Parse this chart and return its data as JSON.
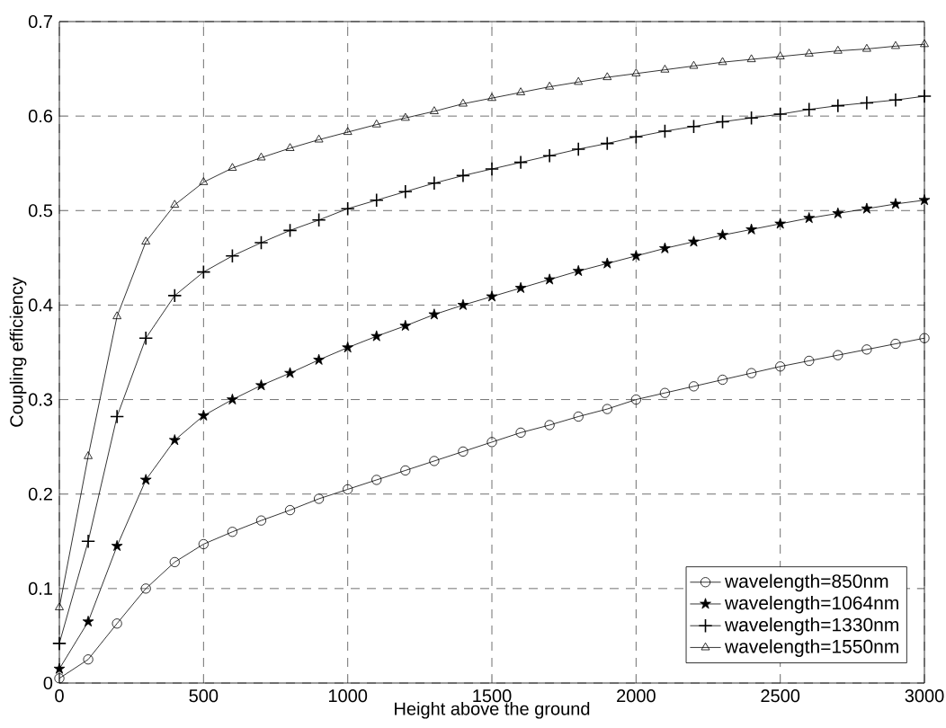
{
  "chart_data": {
    "type": "line",
    "xlabel": "Height above the ground",
    "ylabel": "Coupling efficiency",
    "x": [
      0,
      100,
      200,
      300,
      400,
      500,
      600,
      700,
      800,
      900,
      1000,
      1100,
      1200,
      1300,
      1400,
      1500,
      1600,
      1700,
      1800,
      1900,
      2000,
      2100,
      2200,
      2300,
      2400,
      2500,
      2600,
      2700,
      2800,
      2900,
      3000
    ],
    "series": [
      {
        "name": "wavelength=850nm",
        "color": "#000000",
        "marker": "circle",
        "values": [
          0.005,
          0.025,
          0.063,
          0.1,
          0.128,
          0.147,
          0.16,
          0.172,
          0.183,
          0.195,
          0.205,
          0.215,
          0.225,
          0.235,
          0.245,
          0.255,
          0.265,
          0.273,
          0.282,
          0.29,
          0.3,
          0.307,
          0.314,
          0.321,
          0.328,
          0.335,
          0.341,
          0.347,
          0.353,
          0.359,
          0.365
        ]
      },
      {
        "name": "wavelength=1064nm",
        "color": "#000000",
        "marker": "star",
        "values": [
          0.015,
          0.065,
          0.145,
          0.215,
          0.257,
          0.283,
          0.3,
          0.315,
          0.328,
          0.342,
          0.355,
          0.367,
          0.378,
          0.39,
          0.4,
          0.409,
          0.418,
          0.427,
          0.436,
          0.444,
          0.452,
          0.46,
          0.467,
          0.474,
          0.48,
          0.486,
          0.492,
          0.497,
          0.502,
          0.507,
          0.511
        ]
      },
      {
        "name": "wavelength=1330nm",
        "color": "#000000",
        "marker": "cross",
        "values": [
          0.042,
          0.15,
          0.282,
          0.365,
          0.41,
          0.435,
          0.452,
          0.466,
          0.479,
          0.49,
          0.502,
          0.511,
          0.52,
          0.529,
          0.537,
          0.544,
          0.551,
          0.558,
          0.565,
          0.571,
          0.578,
          0.584,
          0.589,
          0.594,
          0.598,
          0.602,
          0.607,
          0.611,
          0.614,
          0.617,
          0.621
        ]
      },
      {
        "name": "wavelength=1550nm",
        "color": "#000000",
        "marker": "triangle",
        "values": [
          0.08,
          0.24,
          0.388,
          0.467,
          0.506,
          0.53,
          0.545,
          0.556,
          0.566,
          0.575,
          0.583,
          0.591,
          0.598,
          0.605,
          0.613,
          0.619,
          0.625,
          0.631,
          0.636,
          0.641,
          0.645,
          0.649,
          0.653,
          0.657,
          0.66,
          0.663,
          0.666,
          0.669,
          0.671,
          0.674,
          0.676
        ]
      }
    ],
    "xlim": [
      0,
      3000
    ],
    "ylim": [
      0,
      0.7
    ],
    "xticks": [
      0,
      500,
      1000,
      1500,
      2000,
      2500,
      3000
    ],
    "yticks": [
      0,
      0.1,
      0.2,
      0.3,
      0.4,
      0.5,
      0.6,
      0.7
    ],
    "grid": true,
    "legend": "bottom right",
    "line_style": "solid"
  }
}
